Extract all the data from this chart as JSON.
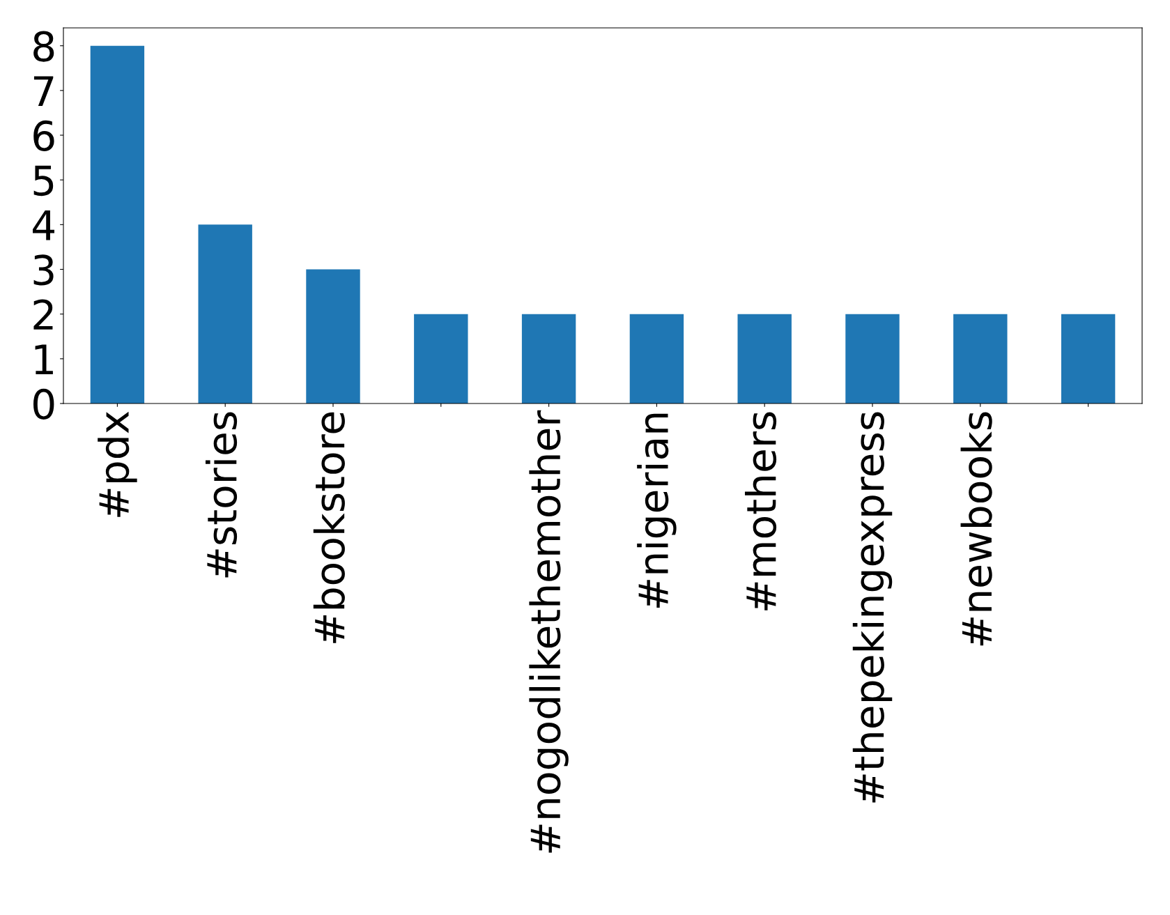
{
  "chart_data": {
    "type": "bar",
    "categories": [
      "#pdx",
      "#stories",
      "#bookstore",
      null,
      "#nogodlikethemother",
      "#nigerian",
      "#mothers",
      "#thepekingexpress",
      "#newbooks",
      null
    ],
    "values": [
      8,
      4,
      3,
      2,
      2,
      2,
      2,
      2,
      2,
      2
    ],
    "color": "#1f77b4",
    "ylim": [
      0,
      8.4
    ],
    "yticks": [
      0,
      1,
      2,
      3,
      4,
      5,
      6,
      7,
      8
    ],
    "grid": false,
    "legend": false
  }
}
